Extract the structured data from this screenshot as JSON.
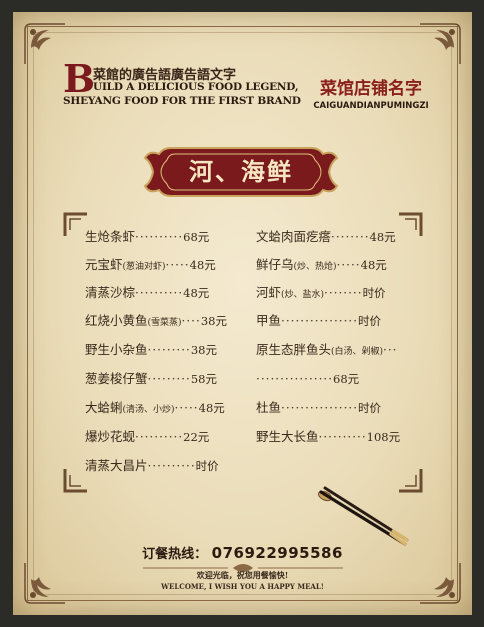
{
  "brand": {
    "initial": "B",
    "cn": "菜館的廣告語廣告語文字",
    "en_line1": "UILD A DELICIOUS FOOD LEGEND,",
    "en_line2": "SHEYANG FOOD FOR THE FIRST BRAND"
  },
  "shop": {
    "name_cn": "菜馆店铺名字",
    "name_pinyin": "CAIGUANDIANPUMINGZI"
  },
  "section_title": "河、海鲜",
  "left_items": [
    {
      "name": "生炝条虾",
      "note": "",
      "dots": "··········",
      "price": "68元"
    },
    {
      "name": "元宝虾",
      "note": "(葱油对虾)",
      "dots": "·····",
      "price": "48元"
    },
    {
      "name": "清蒸沙棕",
      "note": "",
      "dots": "··········",
      "price": "48元"
    },
    {
      "name": "红烧小黄鱼",
      "note": "(雪菜蒸)",
      "dots": "····",
      "price": "38元"
    },
    {
      "name": "野生小杂鱼",
      "note": "",
      "dots": "·········",
      "price": "38元"
    },
    {
      "name": "葱姜梭仔蟹",
      "note": "",
      "dots": "·········",
      "price": "58元"
    },
    {
      "name": "大蛤蜊",
      "note": "(清汤、小炒)",
      "dots": "·····",
      "price": "48元"
    },
    {
      "name": "爆炒花蚬",
      "note": "",
      "dots": "··········",
      "price": "22元"
    },
    {
      "name": "清蒸大昌片",
      "note": "",
      "dots": "··········",
      "price": "时价"
    }
  ],
  "right_items": [
    {
      "name": "文蛤肉面疙瘩",
      "note": "",
      "dots": "········",
      "price": "48元"
    },
    {
      "name": "鲜仔乌",
      "note": "(炒、热炝)",
      "dots": "·····",
      "price": "48元"
    },
    {
      "name": "河虾",
      "note": "(炒、盐水)",
      "dots": "········",
      "price": "时价"
    },
    {
      "name": "甲鱼",
      "note": "",
      "dots": "················",
      "price": "时价"
    },
    {
      "name": "原生态胖鱼头",
      "note": "(白汤、剁椒)",
      "dots": "···",
      "price": ""
    },
    {
      "name": "",
      "note": "",
      "dots": "················",
      "price": "68元"
    },
    {
      "name": "杜鱼",
      "note": "",
      "dots": "················",
      "price": "时价"
    },
    {
      "name": "野生大长鱼",
      "note": "",
      "dots": "··········",
      "price": "108元"
    }
  ],
  "phone": {
    "label": "订餐热线：",
    "number": "076922995586"
  },
  "welcome": {
    "cn": "欢迎光临，祝您用餐愉快!",
    "en": "WELCOME, I WISH YOU A HAPPY MEAL!"
  },
  "colors": {
    "accent": "#7a1a1c",
    "paper": "#efe3c4",
    "ink": "#3a2a1c",
    "gold": "#c9a35c"
  }
}
